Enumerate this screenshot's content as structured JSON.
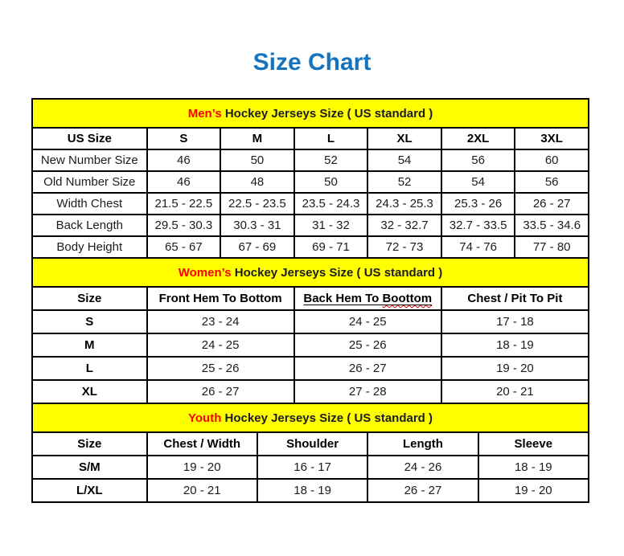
{
  "page": {
    "title": "Size Chart",
    "title_color": "#1673be"
  },
  "colors": {
    "band_background": "#ffff00",
    "accent_red": "#ff0000",
    "title_blue": "#1673be",
    "border_black": "#000000"
  },
  "chart_data": [
    {
      "type": "table",
      "name": "mens",
      "band_highlight": "Men’s",
      "band_rest": " Hockey Jerseys Size ( US standard )",
      "bold_first_col": false,
      "columns": [
        "US Size",
        "S",
        "M",
        "L",
        "XL",
        "2XL",
        "3XL"
      ],
      "rows": [
        [
          "New Number Size",
          "46",
          "50",
          "52",
          "54",
          "56",
          "60"
        ],
        [
          "Old Number Size",
          "46",
          "48",
          "50",
          "52",
          "54",
          "56"
        ],
        [
          "Width Chest",
          "21.5 - 22.5",
          "22.5 - 23.5",
          "23.5 - 24.3",
          "24.3 - 25.3",
          "25.3 - 26",
          "26 - 27"
        ],
        [
          "Back Length",
          "29.5 - 30.3",
          "30.3 - 31",
          "31 - 32",
          "32 - 32.7",
          "32.7 - 33.5",
          "33.5 - 34.6"
        ],
        [
          "Body Height",
          "65 - 67",
          "67 - 69",
          "69 - 71",
          "72 - 73",
          "74 - 76",
          "77 - 80"
        ]
      ]
    },
    {
      "type": "table",
      "name": "womens",
      "band_highlight": "Women’s",
      "band_rest": " Hockey Jerseys Size ( US standard )",
      "bold_first_col": true,
      "columns": [
        "Size",
        "Front Hem To Bottom",
        "Back Hem To Boottom",
        "Chest / Pit To Pit"
      ],
      "misspell": {
        "column_index": 2,
        "prefix": "Back Hem To ",
        "word": "Boottom"
      },
      "rows": [
        [
          "S",
          "23 - 24",
          "24 - 25",
          "17 - 18"
        ],
        [
          "M",
          "24 - 25",
          "25 - 26",
          "18 - 19"
        ],
        [
          "L",
          "25 - 26",
          "26 - 27",
          "19 - 20"
        ],
        [
          "XL",
          "26 - 27",
          "27 - 28",
          "20 - 21"
        ]
      ]
    },
    {
      "type": "table",
      "name": "youth",
      "band_highlight": "Youth",
      "band_rest": " Hockey Jerseys Size ( US standard )",
      "bold_first_col": true,
      "columns": [
        "Size",
        "Chest / Width",
        "Shoulder",
        "Length",
        "Sleeve"
      ],
      "rows": [
        [
          "S/M",
          "19 - 20",
          "16 - 17",
          "24 - 26",
          "18 - 19"
        ],
        [
          "L/XL",
          "20 - 21",
          "18 - 19",
          "26 - 27",
          "19 - 20"
        ]
      ]
    }
  ]
}
